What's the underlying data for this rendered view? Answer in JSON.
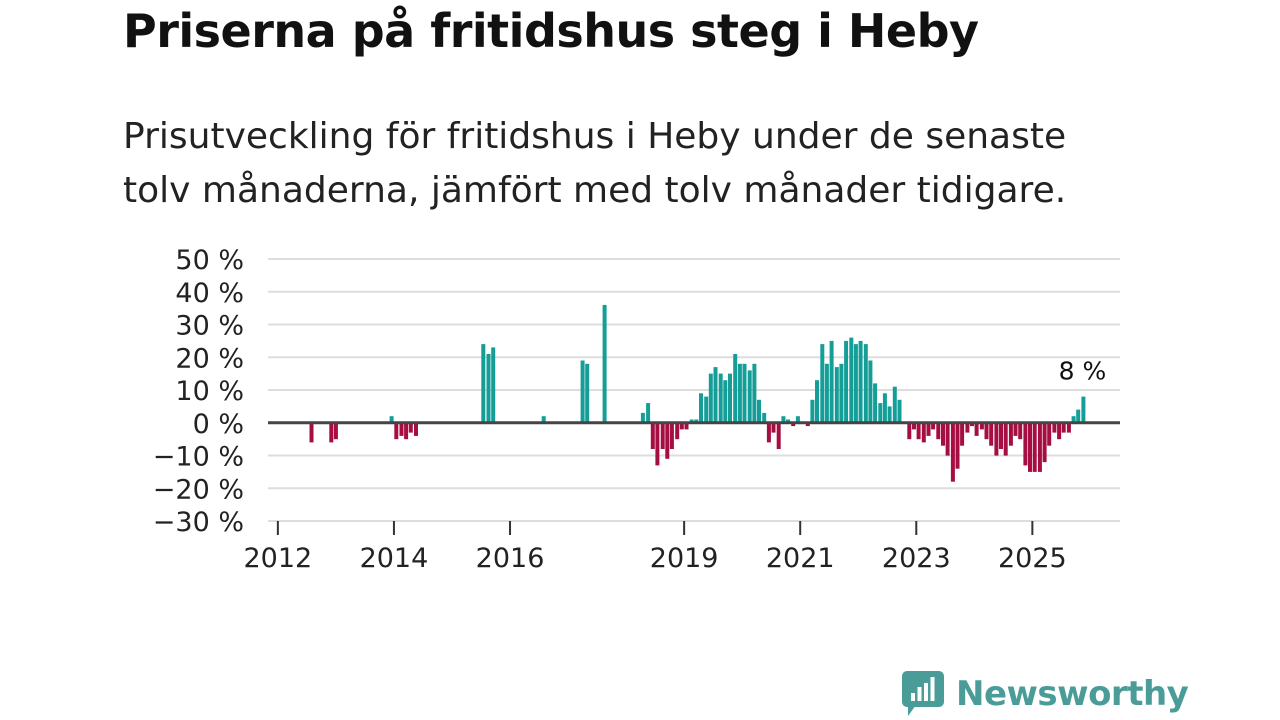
{
  "title": "Priserna på fritidshus steg i Heby",
  "subtitle": "Prisutveckling för fritidshus i Heby under de senaste tolv månaderna, jämfört med tolv månader tidigare.",
  "brand": {
    "name": "Newsworthy",
    "icon": "newsworthy-logo-icon"
  },
  "colors": {
    "positive": "#159e98",
    "negative": "#a60d42",
    "grid": "#dddddd",
    "zero": "#444444",
    "brand": "#4a9c98"
  },
  "chart_data": {
    "type": "bar",
    "title": "Priserna på fritidshus steg i Heby",
    "ylabel": "",
    "xlabel": "",
    "ylim": [
      -30,
      50
    ],
    "y_ticks": [
      50,
      40,
      30,
      20,
      10,
      0,
      -10,
      -20,
      -30
    ],
    "y_tick_labels": [
      "50 %",
      "40 %",
      "30 %",
      "20 %",
      "10 %",
      "0 %",
      "−10 %",
      "−20 %",
      "−30 %"
    ],
    "x_range": [
      2011.83,
      2026.51
    ],
    "x_ticks": [
      2012,
      2014,
      2016,
      2019,
      2021,
      2023,
      2025
    ],
    "x_tick_labels": [
      "2012",
      "2014",
      "2016",
      "2019",
      "2021",
      "2023",
      "2025"
    ],
    "last_label": "8 %",
    "series": [
      {
        "name": "Prisutveckling",
        "points": [
          [
            2012.58,
            -6
          ],
          [
            2012.92,
            -6
          ],
          [
            2013.0,
            -5
          ],
          [
            2013.96,
            2
          ],
          [
            2014.04,
            -5
          ],
          [
            2014.13,
            -4
          ],
          [
            2014.21,
            -5
          ],
          [
            2014.29,
            -3
          ],
          [
            2014.38,
            -4
          ],
          [
            2015.54,
            24
          ],
          [
            2015.63,
            21
          ],
          [
            2015.71,
            23
          ],
          [
            2016.58,
            2
          ],
          [
            2017.25,
            19
          ],
          [
            2017.33,
            18
          ],
          [
            2017.63,
            36
          ],
          [
            2018.29,
            3
          ],
          [
            2018.38,
            6
          ],
          [
            2018.46,
            -8
          ],
          [
            2018.54,
            -13
          ],
          [
            2018.63,
            -8
          ],
          [
            2018.71,
            -11
          ],
          [
            2018.79,
            -8
          ],
          [
            2018.88,
            -5
          ],
          [
            2018.96,
            -2
          ],
          [
            2019.04,
            -2
          ],
          [
            2019.13,
            1
          ],
          [
            2019.21,
            1
          ],
          [
            2019.29,
            9
          ],
          [
            2019.38,
            8
          ],
          [
            2019.46,
            15
          ],
          [
            2019.54,
            17
          ],
          [
            2019.63,
            15
          ],
          [
            2019.71,
            13
          ],
          [
            2019.79,
            15
          ],
          [
            2019.88,
            21
          ],
          [
            2019.96,
            18
          ],
          [
            2020.04,
            18
          ],
          [
            2020.13,
            16
          ],
          [
            2020.21,
            18
          ],
          [
            2020.29,
            7
          ],
          [
            2020.38,
            3
          ],
          [
            2020.46,
            -6
          ],
          [
            2020.54,
            -3
          ],
          [
            2020.63,
            -8
          ],
          [
            2020.71,
            2
          ],
          [
            2020.79,
            1
          ],
          [
            2020.88,
            -1
          ],
          [
            2020.96,
            2
          ],
          [
            2021.13,
            -1
          ],
          [
            2021.21,
            7
          ],
          [
            2021.29,
            13
          ],
          [
            2021.38,
            24
          ],
          [
            2021.46,
            18
          ],
          [
            2021.54,
            25
          ],
          [
            2021.63,
            17
          ],
          [
            2021.71,
            18
          ],
          [
            2021.79,
            25
          ],
          [
            2021.88,
            26
          ],
          [
            2021.96,
            24
          ],
          [
            2022.04,
            25
          ],
          [
            2022.13,
            24
          ],
          [
            2022.21,
            19
          ],
          [
            2022.29,
            12
          ],
          [
            2022.38,
            6
          ],
          [
            2022.46,
            9
          ],
          [
            2022.54,
            5
          ],
          [
            2022.63,
            11
          ],
          [
            2022.71,
            7
          ],
          [
            2022.88,
            -5
          ],
          [
            2022.96,
            -2
          ],
          [
            2023.04,
            -5
          ],
          [
            2023.13,
            -6
          ],
          [
            2023.21,
            -4
          ],
          [
            2023.29,
            -2
          ],
          [
            2023.38,
            -5
          ],
          [
            2023.46,
            -7
          ],
          [
            2023.54,
            -10
          ],
          [
            2023.63,
            -18
          ],
          [
            2023.71,
            -14
          ],
          [
            2023.79,
            -7
          ],
          [
            2023.88,
            -3
          ],
          [
            2023.96,
            -1
          ],
          [
            2024.04,
            -4
          ],
          [
            2024.13,
            -2
          ],
          [
            2024.21,
            -5
          ],
          [
            2024.29,
            -7
          ],
          [
            2024.38,
            -10
          ],
          [
            2024.46,
            -8
          ],
          [
            2024.54,
            -10
          ],
          [
            2024.63,
            -7
          ],
          [
            2024.71,
            -4
          ],
          [
            2024.79,
            -5
          ],
          [
            2024.88,
            -13
          ],
          [
            2024.96,
            -15
          ],
          [
            2025.04,
            -15
          ],
          [
            2025.13,
            -15
          ],
          [
            2025.21,
            -12
          ],
          [
            2025.29,
            -7
          ],
          [
            2025.38,
            -3
          ],
          [
            2025.46,
            -5
          ],
          [
            2025.54,
            -3
          ],
          [
            2025.63,
            -3
          ],
          [
            2025.71,
            2
          ],
          [
            2025.79,
            4
          ],
          [
            2025.88,
            8
          ]
        ]
      }
    ]
  }
}
